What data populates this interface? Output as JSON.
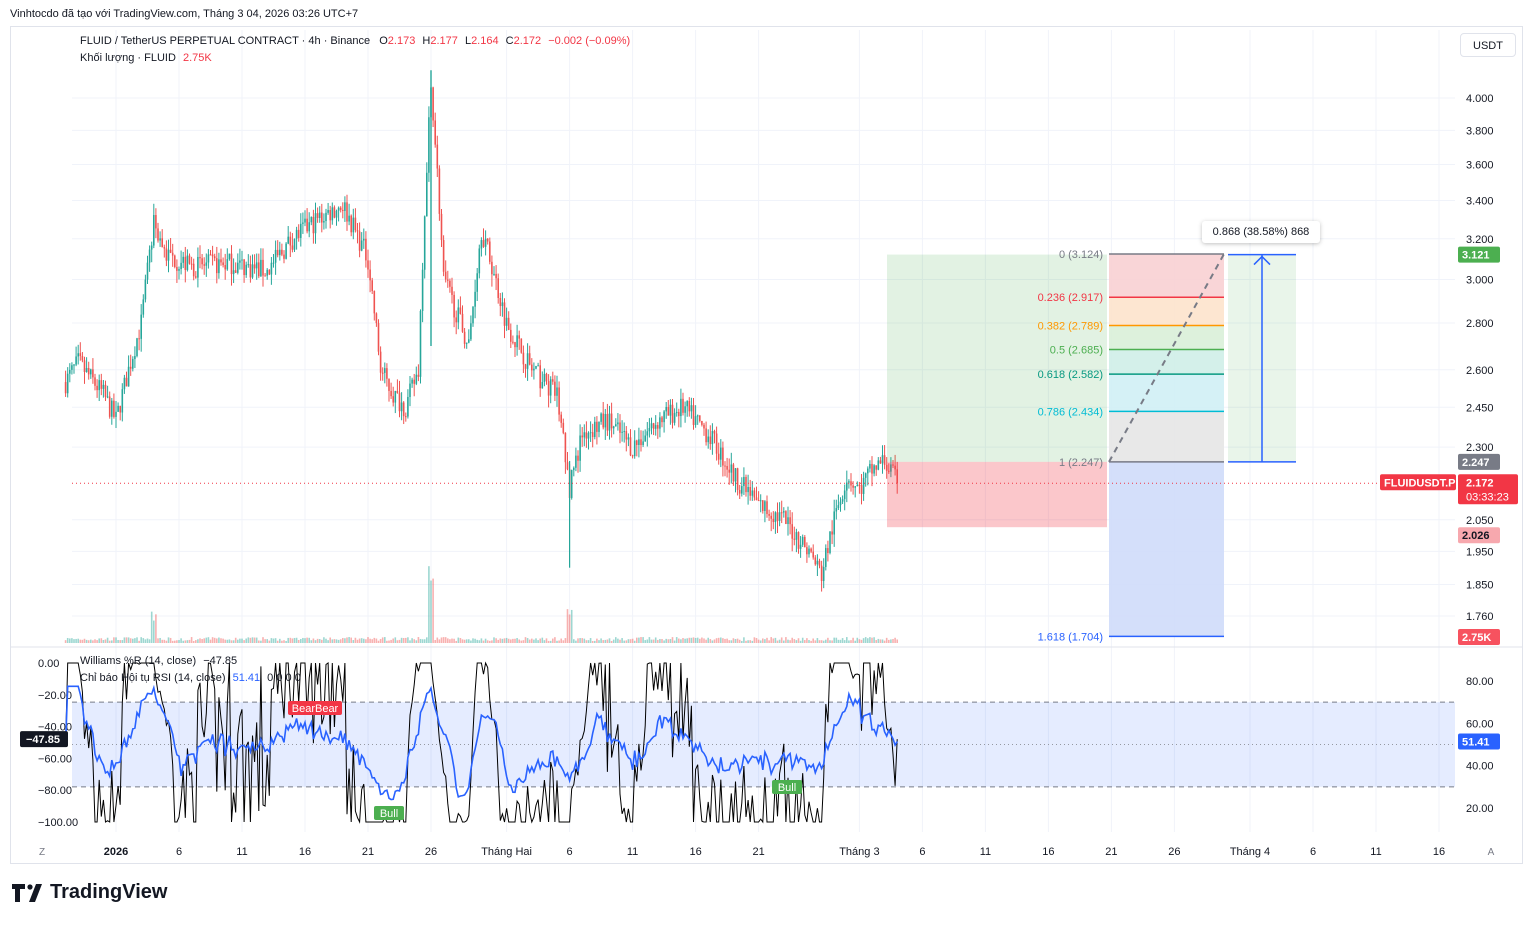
{
  "attribution": "Vinhtocdo đã tạo với TradingView.com, Tháng 3 04, 2026 03:26 UTC+7",
  "symbol_line": "FLUID / TetherUS PERPETUAL CONTRACT · 4h · Binance",
  "ohlc": {
    "o_label": "O",
    "o": "2.173",
    "h_label": "H",
    "h": "2.177",
    "l_label": "L",
    "l": "2.164",
    "c_label": "C",
    "c": "2.172",
    "change": "−0.002 (−0.09%)"
  },
  "volume_line": {
    "label": "Khối lượng · FLUID",
    "value": "2.75K"
  },
  "currency_button": "USDT",
  "brand": "TradingView",
  "colors": {
    "up": "#26a69a",
    "down": "#ef5350",
    "blue": "#2962ff",
    "grid": "#f0f3fa",
    "axis_text": "#131722"
  },
  "chart_data": {
    "type": "candlestick",
    "timeframe": "4h",
    "price_axis": {
      "scale": "log",
      "ticks": [
        "4.000",
        "3.800",
        "3.600",
        "3.400",
        "3.200",
        "3.000",
        "2.800",
        "2.600",
        "2.450",
        "2.300",
        "2.050",
        "1.950",
        "1.850",
        "1.760"
      ]
    },
    "time_axis": {
      "ticks": [
        "2026",
        "6",
        "11",
        "16",
        "21",
        "26",
        "Tháng Hai",
        "6",
        "11",
        "16",
        "21",
        "Tháng 3",
        "6",
        "11",
        "16",
        "21",
        "26",
        "Tháng 4",
        "6",
        "11",
        "16"
      ]
    },
    "price_path": [
      [
        "2025-12-28",
        2.55
      ],
      [
        "2025-12-29",
        2.63
      ],
      [
        "2025-12-31",
        2.5
      ],
      [
        "2026-01-01",
        2.4
      ],
      [
        "2026-01-02",
        2.6
      ],
      [
        "2026-01-03",
        2.8
      ],
      [
        "2026-01-04",
        3.28
      ],
      [
        "2026-01-05",
        3.12
      ],
      [
        "2026-01-07",
        3.06
      ],
      [
        "2026-01-10",
        3.08
      ],
      [
        "2026-01-13",
        3.04
      ],
      [
        "2026-01-15",
        3.2
      ],
      [
        "2026-01-17",
        3.3
      ],
      [
        "2026-01-19",
        3.38
      ],
      [
        "2026-01-21",
        3.1
      ],
      [
        "2026-01-22",
        2.6
      ],
      [
        "2026-01-23",
        2.5
      ],
      [
        "2026-01-24",
        2.45
      ],
      [
        "2026-01-25",
        2.6
      ],
      [
        "2026-01-26",
        4.1
      ],
      [
        "2026-01-27",
        3.0
      ],
      [
        "2026-01-29",
        2.7
      ],
      [
        "2026-01-30",
        3.25
      ],
      [
        "2026-02-01",
        2.8
      ],
      [
        "2026-02-03",
        2.6
      ],
      [
        "2026-02-05",
        2.5
      ],
      [
        "2026-02-06",
        2.15
      ],
      [
        "2026-02-07",
        2.35
      ],
      [
        "2026-02-09",
        2.4
      ],
      [
        "2026-02-11",
        2.3
      ],
      [
        "2026-02-13",
        2.4
      ],
      [
        "2026-02-15",
        2.45
      ],
      [
        "2026-02-17",
        2.35
      ],
      [
        "2026-02-19",
        2.2
      ],
      [
        "2026-02-21",
        2.1
      ],
      [
        "2026-02-23",
        2.05
      ],
      [
        "2026-02-25",
        1.95
      ],
      [
        "2026-02-26",
        1.88
      ],
      [
        "2026-02-27",
        2.05
      ],
      [
        "2026-02-28",
        2.2
      ],
      [
        "2026-03-01",
        2.15
      ],
      [
        "2026-03-02",
        2.22
      ],
      [
        "2026-03-03",
        2.25
      ],
      [
        "2026-03-04",
        2.172
      ]
    ],
    "volume_spikes": [
      [
        "2026-01-04",
        "~"
      ],
      [
        "2026-01-26",
        "~"
      ],
      [
        "2026-02-06",
        "~"
      ]
    ],
    "current_price": {
      "label": "FLUIDUSDT.P",
      "price": "2.172",
      "countdown": "03:33:23"
    },
    "price_labels": {
      "target": "3.121",
      "entry": "2.247",
      "stop": "2.026",
      "volume": "2.75K"
    },
    "fibonacci": {
      "levels": [
        {
          "ratio": "0",
          "price": "3.124",
          "text": "0 (3.124)",
          "color": "#787b86",
          "fill": "#f8d0d3"
        },
        {
          "ratio": "0.236",
          "price": "2.917",
          "text": "0.236 (2.917)",
          "color": "#f23645",
          "fill": "#fde3cc"
        },
        {
          "ratio": "0.382",
          "price": "2.789",
          "text": "0.382 (2.789)",
          "color": "#ff9800",
          "fill": "#d9f0d8"
        },
        {
          "ratio": "0.5",
          "price": "2.685",
          "text": "0.5 (2.685)",
          "color": "#4caf50",
          "fill": "#cfeee8"
        },
        {
          "ratio": "0.618",
          "price": "2.582",
          "text": "0.618 (2.582)",
          "color": "#089981",
          "fill": "#d0f0f5"
        },
        {
          "ratio": "0.786",
          "price": "2.434",
          "text": "0.786 (2.434)",
          "color": "#00bcd4",
          "fill": "#e6e6e6"
        },
        {
          "ratio": "1",
          "price": "2.247",
          "text": "1 (2.247)",
          "color": "#787b86",
          "fill": "#cfdcfa"
        },
        {
          "ratio": "1.618",
          "price": "1.704",
          "text": "1.618 (1.704)",
          "color": "#2962ff",
          "fill": "none"
        }
      ]
    },
    "position_tool": {
      "entry": 2.247,
      "target": 3.121,
      "stop": 2.026
    },
    "measure_label": "0.868 (38.58%) 868",
    "williams_r": {
      "name": "Williams %R (14, close)",
      "value": "−47.85",
      "axis_ticks": [
        "0.00",
        "−20.00",
        "−40.00",
        "−60.00",
        "−80.00",
        "−100.00"
      ],
      "levels": [
        -20,
        -80
      ]
    },
    "rsi_divergence": {
      "name": "Chỉ báo Hội tụ RSI (14, close)",
      "value": "51.41",
      "extra": "0 0 0 0",
      "axis_ticks": [
        "80.00",
        "60.00",
        "40.00",
        "20.00"
      ],
      "band": [
        30,
        70
      ],
      "markers": [
        {
          "text": "Bear",
          "color": "#f23645"
        },
        {
          "text": "Bull",
          "color": "#4caf50"
        },
        {
          "text": "Bull",
          "color": "#4caf50"
        }
      ]
    }
  }
}
